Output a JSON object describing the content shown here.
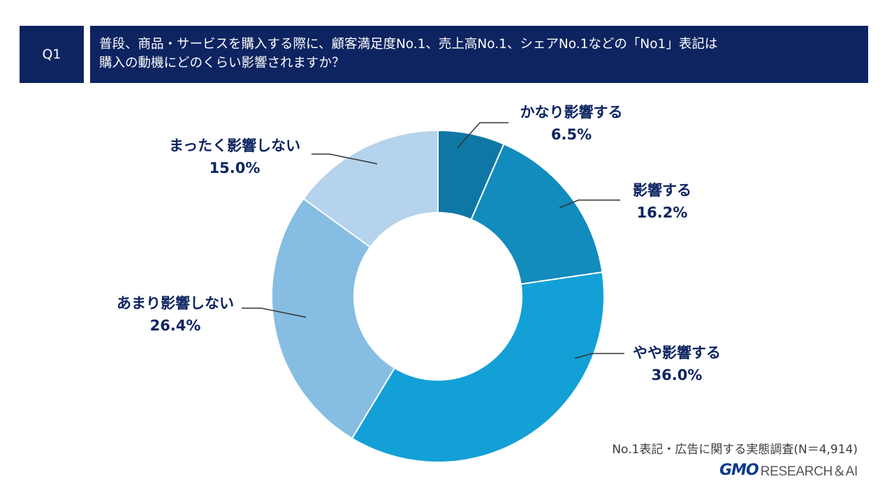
{
  "header": {
    "q_label": "Q1",
    "question_line1": "普段、商品・サービスを購入する際に、顧客満足度No.1、売上高No.1、シェアNo.1などの「No1」表記は",
    "question_line2": "購入の動機にどのくらい影響されますか？"
  },
  "chart_data": {
    "type": "pie",
    "variant": "donut",
    "title": "普段、商品・サービスを購入する際に、顧客満足度No.1、売上高No.1、シェアNo.1などの「No1」表記は購入の動機にどのくらい影響されますか？",
    "slices": [
      {
        "label": "かなり影響する",
        "value": 6.5,
        "value_label": "6.5%",
        "color": "#0f77a4"
      },
      {
        "label": "影響する",
        "value": 16.2,
        "value_label": "16.2%",
        "color": "#128bbd"
      },
      {
        "label": "やや影響する",
        "value": 36.0,
        "value_label": "36.0%",
        "color": "#13a0d7"
      },
      {
        "label": "あまり影響しない",
        "value": 26.4,
        "value_label": "26.4%",
        "color": "#86bde2"
      },
      {
        "label": "まったく影響しない",
        "value": 15.0,
        "value_label": "15.0%",
        "color": "#b5d3ec"
      }
    ],
    "start": "12 o'clock",
    "direction": "clockwise",
    "label_color": "#0d2461",
    "legend": "none"
  },
  "footer": {
    "source": "No.1表記・広告に関する実態調査(N＝4,914)",
    "logo_gmo": "GMO",
    "logo_rest": "RESEARCH＆AI"
  }
}
